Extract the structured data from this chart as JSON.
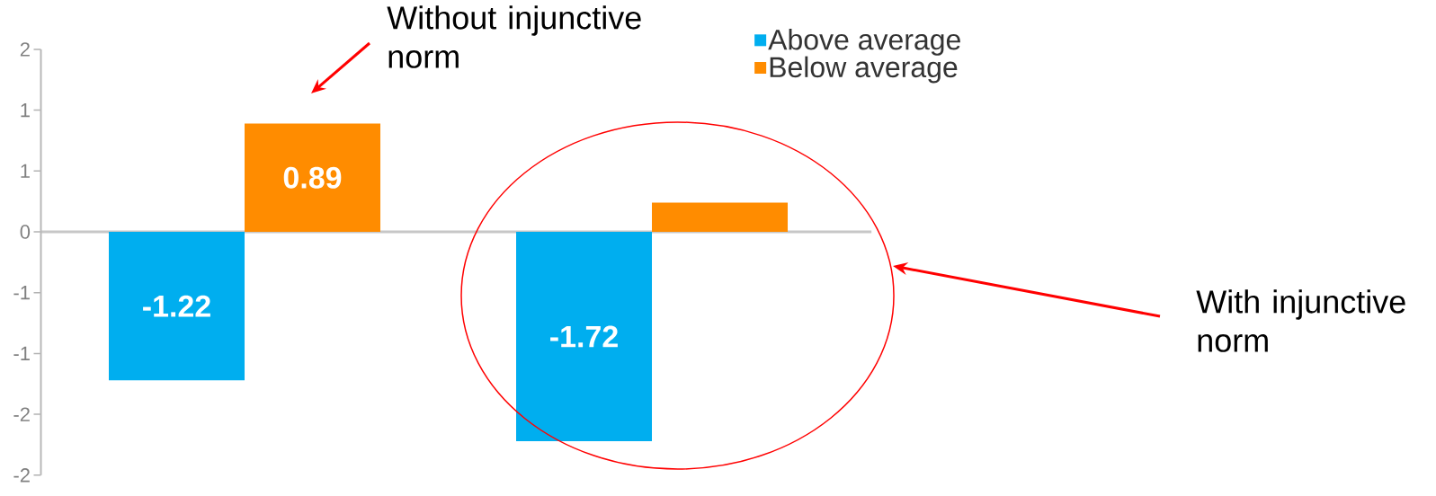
{
  "chart_data": {
    "type": "bar",
    "categories": [
      null,
      null
    ],
    "series": [
      {
        "name": "Above average",
        "color": "#00aeef",
        "values": [
          -1.22,
          -1.72
        ],
        "value_labels": [
          "-1.22",
          "-1.72"
        ]
      },
      {
        "name": "Below average",
        "color": "#ff8c00",
        "values": [
          0.89,
          0.24
        ],
        "value_labels": [
          "0.89",
          null
        ]
      }
    ],
    "ylim": [
      -2,
      1.5
    ],
    "yticks": [
      {
        "value": -2,
        "label": "-2"
      },
      {
        "value": -1.5,
        "label": "-2"
      },
      {
        "value": -1,
        "label": "-1"
      },
      {
        "value": -0.5,
        "label": "-1"
      },
      0,
      {
        "value": 0.5,
        "label": "1"
      },
      {
        "value": 1,
        "label": "1"
      },
      {
        "value": 1.5,
        "label": "2"
      }
    ],
    "legend": "top right",
    "annotations": [
      "Without injunctive norm",
      "With injunctive norm"
    ]
  }
}
